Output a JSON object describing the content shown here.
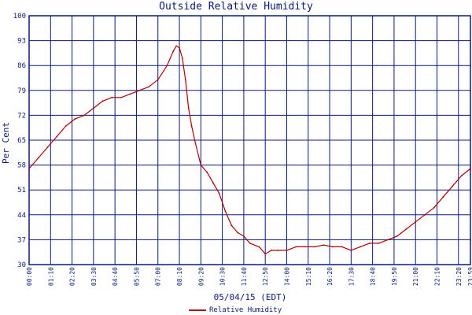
{
  "chart_data": {
    "type": "line",
    "title": "Outside Relative Humidity",
    "xlabel": "05/04/15 (EDT)",
    "ylabel": "Per Cent",
    "ylim": [
      30,
      100
    ],
    "yticks": [
      "30",
      "37",
      "44",
      "51",
      "58",
      "65",
      "72",
      "79",
      "86",
      "93",
      "100"
    ],
    "xticks": [
      "00:00",
      "01:10",
      "02:20",
      "03:30",
      "04:40",
      "05:50",
      "07:00",
      "08:10",
      "09:20",
      "10:30",
      "11:40",
      "12:50",
      "14:00",
      "15:10",
      "16:20",
      "17:30",
      "18:40",
      "19:50",
      "21:00",
      "22:10",
      "23:20",
      "23:59"
    ],
    "grid": true,
    "legend_position": "bottom",
    "colors": {
      "series": "#b00000",
      "grid": "#0a1a7a",
      "text": "#0a1a7a",
      "background": "#ffffff"
    },
    "series": [
      {
        "name": "Relative Humidity",
        "x": [
          "00:00",
          "00:30",
          "01:00",
          "01:30",
          "02:00",
          "02:30",
          "03:00",
          "03:30",
          "04:00",
          "04:30",
          "05:00",
          "05:30",
          "06:00",
          "06:30",
          "07:00",
          "07:30",
          "07:50",
          "08:00",
          "08:10",
          "08:20",
          "08:30",
          "08:40",
          "08:50",
          "09:00",
          "09:20",
          "09:40",
          "10:00",
          "10:20",
          "10:40",
          "11:00",
          "11:20",
          "11:40",
          "12:00",
          "12:30",
          "12:50",
          "13:10",
          "13:30",
          "14:00",
          "14:30",
          "15:00",
          "15:30",
          "16:00",
          "16:30",
          "17:00",
          "17:30",
          "18:00",
          "18:30",
          "19:00",
          "19:30",
          "20:00",
          "20:30",
          "21:00",
          "21:30",
          "22:00",
          "22:30",
          "23:00",
          "23:30",
          "23:59"
        ],
        "values": [
          57,
          60,
          63,
          66,
          69,
          71,
          72,
          74,
          76,
          77,
          77,
          78,
          79,
          80,
          82,
          86,
          90,
          91.5,
          91,
          88,
          82,
          74,
          69,
          65,
          58,
          56,
          53,
          50,
          45,
          41,
          39,
          38,
          36,
          35,
          33,
          34,
          34,
          34,
          35,
          35,
          35,
          35.5,
          35,
          35,
          34,
          35,
          36,
          36,
          37,
          38,
          40,
          42,
          44,
          46,
          49,
          52,
          55,
          57
        ]
      }
    ]
  }
}
